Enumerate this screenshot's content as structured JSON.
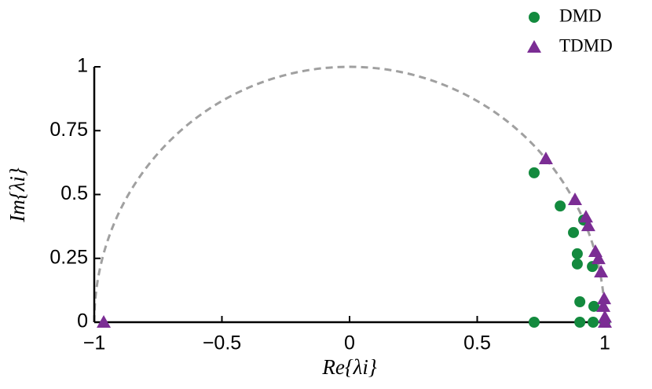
{
  "chart_data": {
    "type": "scatter",
    "xlabel": "Re{λi}",
    "ylabel": "Im{λi}",
    "xlim": [
      -1,
      1
    ],
    "ylim": [
      0,
      1
    ],
    "xticks": [
      {
        "value": -1,
        "label": "−1"
      },
      {
        "value": -0.5,
        "label": "−0.5"
      },
      0,
      0.5,
      1
    ],
    "yticks": [
      0,
      0.25,
      0.5,
      0.75,
      1
    ],
    "legend": "top-right",
    "series": [
      {
        "name": "DMD",
        "color": "#138a3e",
        "marker": "circle",
        "x": [
          0.723,
          0.825,
          0.917,
          0.877,
          0.892,
          0.892,
          0.951,
          0.902,
          0.957,
          0.723,
          0.902,
          0.954,
          1.0
        ],
        "y": [
          0.585,
          0.455,
          0.4,
          0.351,
          0.268,
          0.228,
          0.218,
          0.08,
          0.062,
          0,
          0,
          0,
          0
        ]
      },
      {
        "name": "TDMD",
        "color": "#7b2d94",
        "marker": "triangle",
        "x": [
          -0.963,
          0.769,
          0.883,
          0.926,
          0.935,
          0.963,
          0.975,
          0.985,
          0.997,
          0.994,
          1.0,
          1.0
        ],
        "y": [
          0,
          0.64,
          0.48,
          0.412,
          0.378,
          0.277,
          0.249,
          0.197,
          0.092,
          0.062,
          0.02,
          0
        ]
      }
    ]
  }
}
